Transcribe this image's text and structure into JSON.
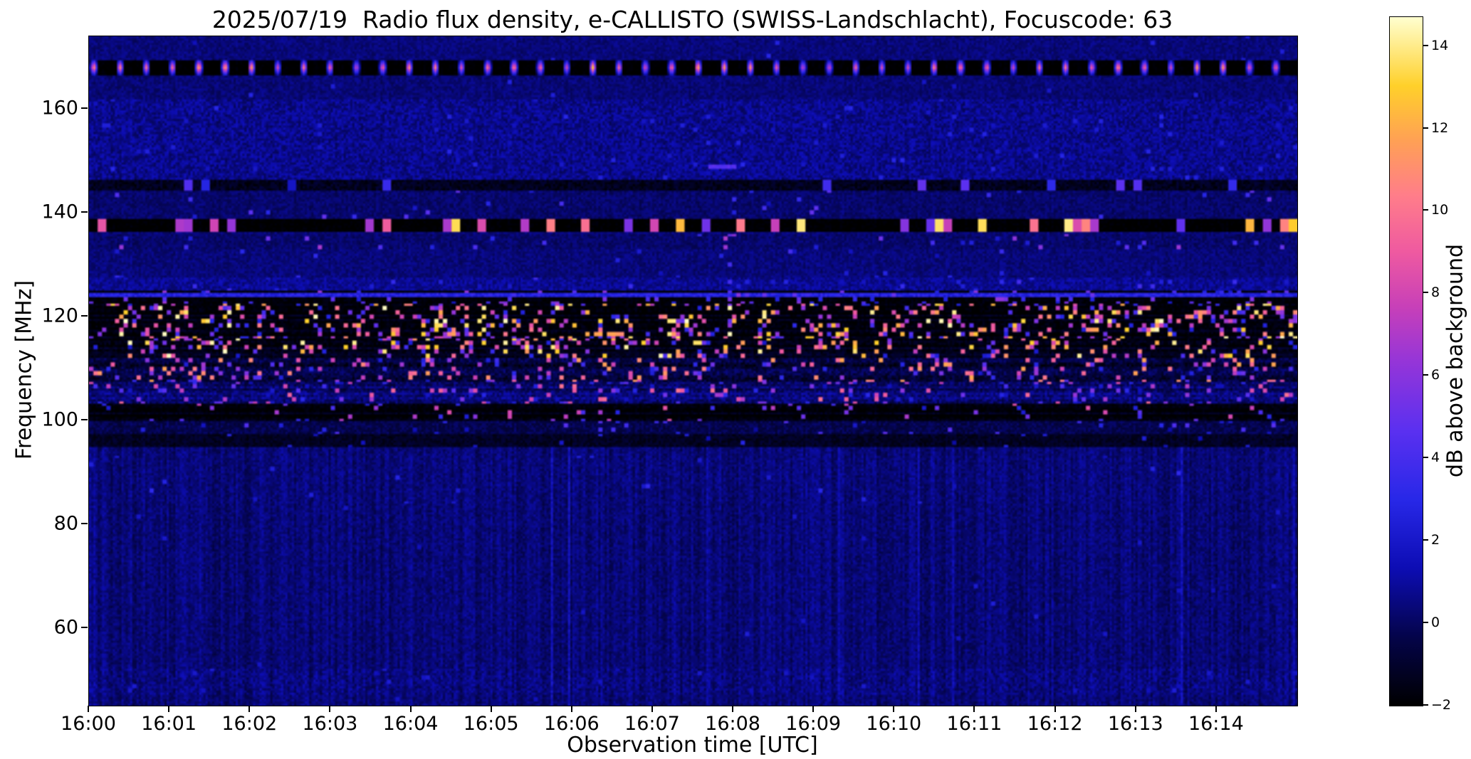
{
  "chart_data": {
    "type": "heatmap",
    "title": "2025/07/19  Radio flux density, e-CALLISTO (SWISS-Landschlacht), Focuscode: 63",
    "xlabel": "Observation time [UTC]",
    "ylabel": "Frequency [MHz]",
    "x_ticks": [
      "16:00",
      "16:01",
      "16:02",
      "16:03",
      "16:04",
      "16:05",
      "16:06",
      "16:07",
      "16:08",
      "16:09",
      "16:10",
      "16:11",
      "16:12",
      "16:13",
      "16:14"
    ],
    "x_span_minutes": 15,
    "x_range": [
      "16:00",
      "16:15"
    ],
    "y_ticks": [
      160,
      140,
      120,
      100,
      80,
      60
    ],
    "ylim": [
      45,
      174
    ],
    "grid": false,
    "colorbar": {
      "label": "dB above background",
      "ticks": [
        -2,
        0,
        2,
        4,
        6,
        8,
        10,
        12,
        14
      ],
      "vmin": -2,
      "vmax": 14.7,
      "stops": [
        [
          0.0,
          "#000000"
        ],
        [
          0.1,
          "#04044a"
        ],
        [
          0.2,
          "#0d0db4"
        ],
        [
          0.3,
          "#2828e8"
        ],
        [
          0.4,
          "#5b30f0"
        ],
        [
          0.5,
          "#9535d8"
        ],
        [
          0.58,
          "#c840b8"
        ],
        [
          0.66,
          "#ef5aa0"
        ],
        [
          0.74,
          "#ff7d8a"
        ],
        [
          0.82,
          "#ffa055"
        ],
        [
          0.9,
          "#ffd02a"
        ],
        [
          1.0,
          "#ffffd0"
        ]
      ]
    },
    "bands": [
      {
        "name": "background",
        "f_lo": 45,
        "f_hi": 174,
        "base": 0.4,
        "noise": 0.5,
        "p": 0.004,
        "s_lo": 1.5,
        "s_hi": 3
      },
      {
        "name": "low-quiet",
        "f_lo": 45,
        "f_hi": 95,
        "base": 0.35,
        "noise": 0.55,
        "p": 0.002,
        "s_lo": 1.5,
        "s_hi": 2.5
      },
      {
        "name": "50mhz-texture",
        "f_lo": 47,
        "f_hi": 52,
        "base": 0.5,
        "noise": 0.7,
        "p": 0.015,
        "s_lo": 1,
        "s_hi": 2.5
      },
      {
        "name": "fm-faint-dots",
        "f_lo": 84,
        "f_hi": 93,
        "base": 0.4,
        "noise": 0.55,
        "p": 0.008,
        "s_lo": 1.5,
        "s_hi": 3.5
      },
      {
        "name": "dark-96",
        "f_lo": 95,
        "f_hi": 97.5,
        "base": -1.2,
        "noise": 0.5,
        "p": 0.02,
        "s_lo": 1,
        "s_hi": 4
      },
      {
        "name": "98-100",
        "f_lo": 97.5,
        "f_hi": 100,
        "base": -0.3,
        "noise": 0.6,
        "p": 0.04,
        "s_lo": 1,
        "s_hi": 5
      },
      {
        "name": "dark-101",
        "f_lo": 100,
        "f_hi": 103,
        "base": -1.7,
        "noise": 0.4,
        "p": 0.06,
        "s_lo": 2,
        "s_hi": 9
      },
      {
        "name": "105-active",
        "f_lo": 103,
        "f_hi": 107.5,
        "base": 0.2,
        "noise": 0.8,
        "p": 0.1,
        "s_lo": 1.5,
        "s_hi": 10
      },
      {
        "name": "110-active",
        "f_lo": 107.5,
        "f_hi": 112,
        "base": -0.8,
        "noise": 0.8,
        "p": 0.13,
        "s_lo": 2,
        "s_hi": 12
      },
      {
        "name": "114-strong",
        "f_lo": 112,
        "f_hi": 116,
        "base": -1.6,
        "noise": 0.5,
        "p": 0.17,
        "s_lo": 2,
        "s_hi": 14.7
      },
      {
        "name": "119-strongest",
        "f_lo": 116,
        "f_hi": 122.5,
        "base": -1.8,
        "noise": 0.4,
        "p": 0.22,
        "s_lo": 2.5,
        "s_hi": 14.7
      },
      {
        "name": "124-dark",
        "f_lo": 122.5,
        "f_hi": 125,
        "base": -1.8,
        "noise": 0.4,
        "p": 0.09,
        "s_lo": 2,
        "s_hi": 7
      },
      {
        "name": "124-purple-line",
        "f_lo": 123.8,
        "f_hi": 124.6,
        "base": 2.8,
        "noise": 0.8,
        "p": 0.05,
        "s_lo": 3,
        "s_hi": 6
      },
      {
        "name": "126-blue",
        "f_lo": 125,
        "f_hi": 127.5,
        "base": 0.8,
        "noise": 0.7,
        "p": 0.03,
        "s_lo": 1.5,
        "s_hi": 4
      },
      {
        "name": "130-faint",
        "f_lo": 127.5,
        "f_hi": 133,
        "base": 0.4,
        "noise": 0.5,
        "p": 0.01,
        "s_lo": 1.5,
        "s_hi": 4
      },
      {
        "name": "134-pink-dots",
        "f_lo": 133,
        "f_hi": 136,
        "base": 0.2,
        "noise": 0.5,
        "p": 0.035,
        "s_lo": 2,
        "s_hi": 7
      },
      {
        "name": "138-rfi-dashes",
        "f_lo": 136.3,
        "f_hi": 139,
        "base": -2,
        "noise": 0.3,
        "p": 0.3,
        "s_lo": 4,
        "s_hi": 14,
        "dashy": true
      },
      {
        "name": "141-faint",
        "f_lo": 139,
        "f_hi": 144.5,
        "base": 0.2,
        "noise": 0.5,
        "p": 0.015,
        "s_lo": 1.5,
        "s_hi": 5
      },
      {
        "name": "146-rfi-dashes",
        "f_lo": 144.5,
        "f_hi": 146.5,
        "base": -1.3,
        "noise": 0.6,
        "p": 0.1,
        "s_lo": 1.5,
        "s_hi": 6,
        "dashy": true
      },
      {
        "name": "155-blue-blotches",
        "f_lo": 146.5,
        "f_hi": 162,
        "base": 0.7,
        "noise": 0.8,
        "p": 0.02,
        "s_lo": 1.2,
        "s_hi": 3
      },
      {
        "name": "164-quiet",
        "f_lo": 162,
        "f_hi": 166.5,
        "base": 0.35,
        "noise": 0.5,
        "p": 0.005,
        "s_lo": 1.5,
        "s_hi": 3
      },
      {
        "name": "168-periodic-bursts",
        "f_lo": 166.8,
        "f_hi": 169.6,
        "base": -2,
        "noise": 0.2,
        "periodic": {
          "count": 46,
          "duty": 0.28,
          "v_lo": 9,
          "v_hi": 14.7
        }
      },
      {
        "name": "top-quiet",
        "f_lo": 169.6,
        "f_hi": 174,
        "base": 0.4,
        "noise": 0.5,
        "p": 0.003,
        "s_lo": 1.5,
        "s_hi": 3
      }
    ],
    "features": [
      {
        "name": "149mhz-purple-dash",
        "f_lo": 148.6,
        "f_hi": 149.5,
        "t_lo": 0.512,
        "t_hi": 0.536,
        "val": 4.5
      }
    ]
  }
}
